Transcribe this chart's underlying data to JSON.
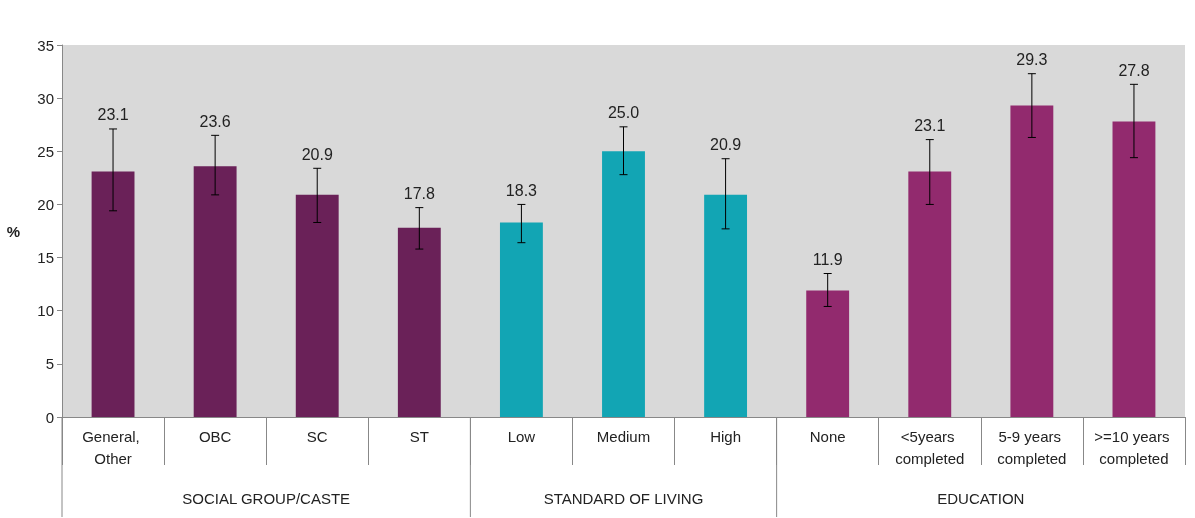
{
  "chart_data": {
    "type": "bar",
    "ylabel": "%",
    "categories": [
      "General, Other",
      "OBC",
      "SC",
      "ST",
      "Low",
      "Medium",
      "High",
      "None",
      "<5years completed",
      "5-9 years completed",
      ">=10 years completed"
    ],
    "series": [
      {
        "color": "#6a2158",
        "values": [
          23.1,
          23.6,
          20.9,
          17.8,
          null,
          null,
          null,
          null,
          null,
          null,
          null
        ],
        "errors": [
          [
            19.4,
            27.1
          ],
          [
            20.9,
            26.5
          ],
          [
            18.3,
            23.4
          ],
          [
            15.8,
            19.7
          ],
          null,
          null,
          null,
          null,
          null,
          null,
          null
        ],
        "value_labels": [
          "23.1",
          "23.6",
          "20.9",
          "17.8",
          null,
          null,
          null,
          null,
          null,
          null,
          null
        ]
      },
      {
        "color": "#12a5b4",
        "values": [
          null,
          null,
          null,
          null,
          18.3,
          25.0,
          20.9,
          null,
          null,
          null,
          null
        ],
        "errors": [
          null,
          null,
          null,
          null,
          [
            16.4,
            20.0
          ],
          [
            22.8,
            27.3
          ],
          [
            17.7,
            24.3
          ],
          null,
          null,
          null,
          null
        ],
        "value_labels": [
          null,
          null,
          null,
          null,
          "18.3",
          "25.0",
          "20.9",
          null,
          null,
          null,
          null
        ]
      },
      {
        "color": "#922a6e",
        "values": [
          null,
          null,
          null,
          null,
          null,
          null,
          null,
          11.9,
          23.1,
          29.3,
          27.8
        ],
        "errors": [
          null,
          null,
          null,
          null,
          null,
          null,
          null,
          [
            10.4,
            13.5
          ],
          [
            20.0,
            26.1
          ],
          [
            26.3,
            32.3
          ],
          [
            24.4,
            31.3
          ]
        ],
        "value_labels": [
          null,
          null,
          null,
          null,
          null,
          null,
          null,
          "11.9",
          "23.1",
          "29.3",
          "27.8"
        ]
      }
    ],
    "ylim": [
      0,
      35
    ],
    "yticks": [
      0,
      5,
      10,
      15,
      20,
      25,
      30,
      35
    ],
    "grid": false,
    "annotations": [
      "SOCIAL GROUP/CASTE",
      "STANDARD OF LIVING",
      "EDUCATION"
    ]
  }
}
